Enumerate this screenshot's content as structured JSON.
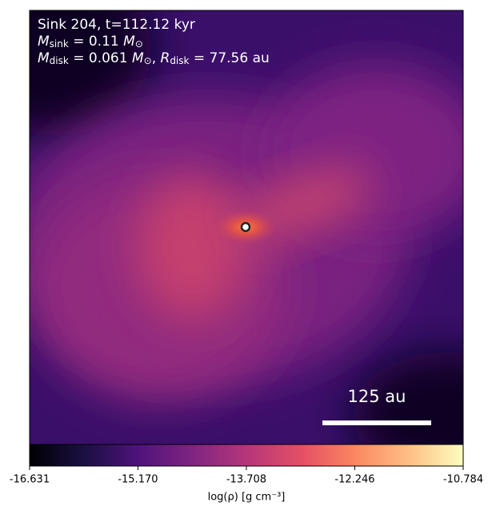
{
  "chart_data": {
    "type": "density-map",
    "annotation_lines": [
      [
        {
          "text": "Sink 204, t=112.12 kyr"
        }
      ],
      [
        {
          "text": "M",
          "italic": true
        },
        {
          "text": "sink",
          "sub": true
        },
        {
          "text": " = 0.11 "
        },
        {
          "text": "M",
          "italic": true
        },
        {
          "text": "⊙",
          "sub": true
        }
      ],
      [
        {
          "text": "M",
          "italic": true
        },
        {
          "text": "disk",
          "sub": true
        },
        {
          "text": " = 0.061 "
        },
        {
          "text": "M",
          "italic": true
        },
        {
          "text": "⊙",
          "sub": true
        },
        {
          "text": ", "
        },
        {
          "text": "R",
          "italic": true
        },
        {
          "text": "disk",
          "sub": true
        },
        {
          "text": " = 77.56 au"
        }
      ]
    ],
    "scale_bar_label": "125 au",
    "colorbar": {
      "label": "log(ρ) [g cm⁻³]",
      "xlim": [
        -16.631,
        -10.784
      ],
      "xticks": [
        -16.631,
        {
          "value": -15.17,
          "label": "-15.170"
        },
        -13.708,
        -12.246,
        -10.784
      ]
    }
  }
}
